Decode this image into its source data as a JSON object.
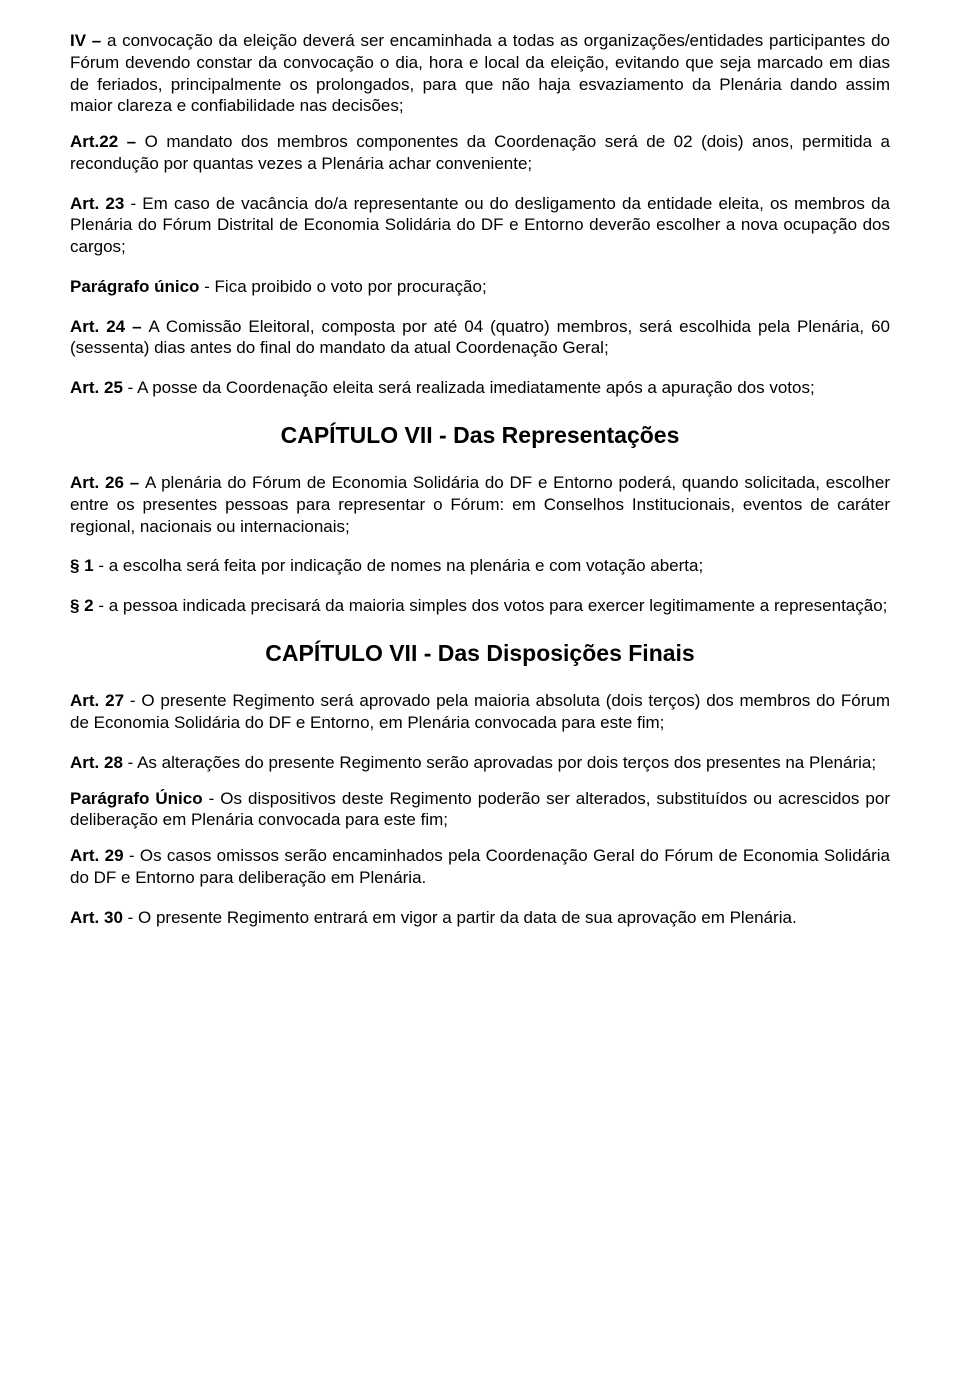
{
  "page": {
    "background_color": "#ffffff",
    "text_color": "#000000",
    "body_fontsize": 17,
    "title_fontsize": 23,
    "font_family": "Arial"
  },
  "p1": {
    "lead": "IV – ",
    "text": "a convocação da eleição deverá ser encaminhada a todas as organizações/entidades participantes do Fórum devendo constar da convocação o dia, hora e local da eleição, evitando que seja marcado em dias de feriados, principalmente os prolongados, para que não haja esvaziamento da Plenária dando assim maior clareza e confiabilidade nas decisões;"
  },
  "p2": {
    "lead": "Art.22 – ",
    "text": "O mandato dos membros componentes da Coordenação será de 02 (dois) anos, permitida a recondução por quantas vezes a Plenária achar conveniente;"
  },
  "p3": {
    "lead": "Art. 23",
    "text": " - Em caso de vacância do/a representante ou do desligamento da entidade eleita, os membros da Plenária do Fórum Distrital de Economia Solidária do DF e Entorno deverão escolher a nova ocupação dos cargos;"
  },
  "p4": {
    "lead": "Parágrafo único",
    "text": " - Fica proibido o voto por procuração;"
  },
  "p5": {
    "lead": "Art. 24 – ",
    "text": "A Comissão Eleitoral, composta por até 04 (quatro) membros, será escolhida pela Plenária, 60 (sessenta) dias antes do final do mandato da atual Coordenação Geral;"
  },
  "p6": {
    "lead": "Art. 25",
    "text": " - A posse da Coordenação eleita será realizada imediatamente após a apuração dos votos;"
  },
  "title1": "CAPÍTULO VII - Das Representações",
  "p7": {
    "lead": "Art. 26 – ",
    "text": "A plenária do Fórum de Economia Solidária do DF e Entorno poderá, quando solicitada, escolher entre os presentes pessoas para representar o Fórum: em Conselhos Institucionais, eventos de caráter regional, nacionais ou internacionais;"
  },
  "p8": {
    "lead": "§ 1",
    "text": " - a escolha será feita por indicação de nomes na plenária e com votação aberta;"
  },
  "p9": {
    "lead": "§ 2",
    "text": " - a pessoa indicada precisará da maioria simples dos votos para exercer legitimamente a representação;"
  },
  "title2": "CAPÍTULO VII - Das Disposições Finais",
  "p10": {
    "lead": "Art. 27",
    "text": " - O presente Regimento será aprovado pela maioria absoluta (dois terços) dos membros do Fórum de Economia Solidária do DF e Entorno, em Plenária convocada para este fim;"
  },
  "p11": {
    "lead": "Art. 28",
    "text": " - As alterações do presente Regimento serão aprovadas por dois terços dos presentes na Plenária;"
  },
  "p12": {
    "lead": "Parágrafo Único",
    "text": " - Os dispositivos deste Regimento poderão ser alterados, substituídos ou acrescidos por deliberação em Plenária convocada para este fim;"
  },
  "p13": {
    "lead": "Art. 29",
    "text": " - Os casos omissos serão encaminhados pela Coordenação Geral do Fórum de Economia Solidária do DF e Entorno para deliberação em Plenária."
  },
  "p14": {
    "lead": "Art. 30",
    "text": " - O presente Regimento entrará em vigor a partir da data de sua aprovação em Plenária."
  }
}
